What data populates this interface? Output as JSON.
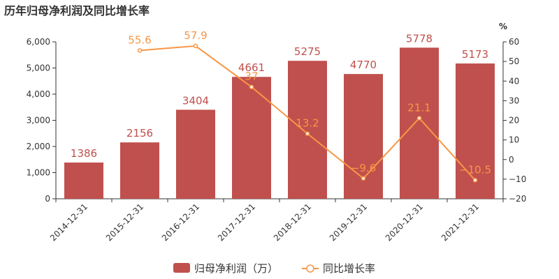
{
  "title": "历年归母净利润及同比增长率",
  "chart_data": {
    "type": "bar",
    "title": "历年归母净利润及同比增长率",
    "categories": [
      "2014-12-31",
      "2015-12-31",
      "2016-12-31",
      "2017-12-31",
      "2018-12-31",
      "2019-12-31",
      "2020-12-31",
      "2021-12-31"
    ],
    "series": [
      {
        "name": "归母净利润（万）",
        "type": "bar",
        "axis": "left",
        "color": "#c0504d",
        "values": [
          1386,
          2156,
          3404,
          4661,
          5275,
          4770,
          5778,
          5173
        ],
        "labels": [
          "1386",
          "2156",
          "3404",
          "4661",
          "5275",
          "4770",
          "5778",
          "5173"
        ]
      },
      {
        "name": "同比增长率",
        "type": "line",
        "axis": "right",
        "color": "#f79646",
        "values": [
          null,
          55.6,
          57.9,
          37,
          13.2,
          -9.6,
          21.1,
          -10.5
        ],
        "labels": [
          "",
          "55.6",
          "57.9",
          "37",
          "13.2",
          "−9.6",
          "21.1",
          "−10.5"
        ]
      }
    ],
    "y_left": {
      "min": 0,
      "max": 6000,
      "step": 1000,
      "tick_labels": [
        "0",
        "1,000",
        "2,000",
        "3,000",
        "4,000",
        "5,000",
        "6,000"
      ]
    },
    "y_right": {
      "unit": "%",
      "min": -20,
      "max": 60,
      "step": 10,
      "tick_labels": [
        "−20",
        "−10",
        "0",
        "10",
        "20",
        "30",
        "40",
        "50",
        "60"
      ]
    },
    "grid": false,
    "legend_position": "bottom-center"
  }
}
